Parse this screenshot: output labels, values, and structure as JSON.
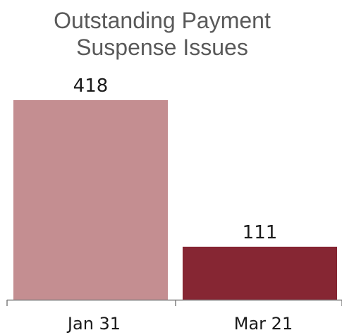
{
  "chart_data": {
    "type": "bar",
    "title_lines": [
      "Outstanding Payment",
      "Suspense Issues"
    ],
    "categories": [
      "Jan 31",
      "Mar 21"
    ],
    "values": [
      418,
      111
    ],
    "data_labels": [
      "418",
      "111"
    ],
    "ylim": [
      0,
      418
    ],
    "grid": false,
    "legend": "none",
    "colors": [
      "#C48E91",
      "#862633"
    ],
    "axis_color": "#7f7f7f"
  }
}
